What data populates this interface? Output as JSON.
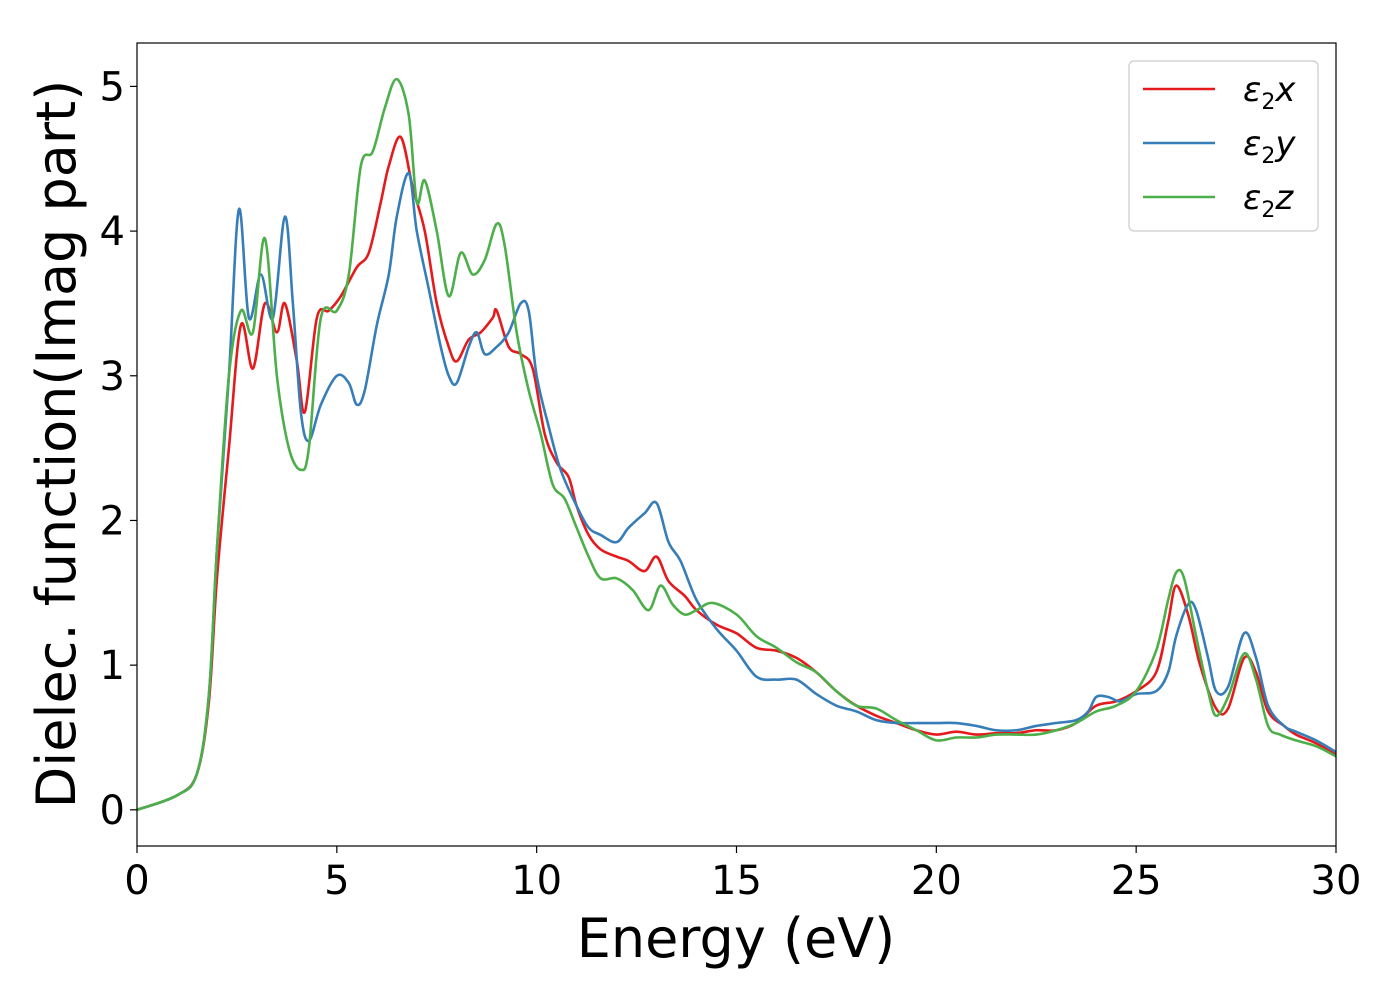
{
  "chart_data": {
    "type": "line",
    "title": "",
    "xlabel": "Energy (eV)",
    "ylabel": "Dielec. function(Imag part)",
    "xlim": [
      0,
      30
    ],
    "ylim": [
      -0.25,
      5.3
    ],
    "xticks": [
      0,
      5,
      10,
      15,
      20,
      25,
      30
    ],
    "yticks": [
      0,
      1,
      2,
      3,
      4,
      5
    ],
    "grid": false,
    "legend_position": "top-right",
    "series": [
      {
        "name": "ε₂x",
        "legend_base": "ε",
        "legend_sub": "2",
        "legend_suffix": "x",
        "color": "#e41a1c",
        "x": [
          0,
          1,
          1.5,
          1.8,
          2.0,
          2.3,
          2.6,
          2.9,
          3.2,
          3.5,
          3.7,
          4.0,
          4.2,
          4.5,
          4.8,
          5.1,
          5.5,
          5.8,
          6.1,
          6.3,
          6.6,
          6.9,
          7.2,
          7.5,
          7.8,
          8.0,
          8.3,
          8.6,
          8.9,
          9.0,
          9.3,
          9.6,
          9.9,
          10.2,
          10.5,
          10.8,
          11.0,
          11.3,
          11.6,
          12.0,
          12.3,
          12.7,
          13.0,
          13.3,
          13.7,
          14.0,
          14.5,
          15.0,
          15.5,
          16.0,
          16.5,
          17.0,
          17.5,
          18.0,
          18.5,
          19.0,
          19.5,
          20.0,
          20.5,
          21.0,
          21.5,
          22.0,
          22.5,
          23.0,
          23.5,
          24.0,
          24.5,
          25.0,
          25.5,
          25.8,
          26.0,
          26.3,
          26.6,
          27.0,
          27.3,
          27.7,
          28.0,
          28.3,
          28.7,
          29.0,
          29.5,
          30.0
        ],
        "values": [
          0,
          0.1,
          0.25,
          0.75,
          1.6,
          2.5,
          3.35,
          3.05,
          3.5,
          3.3,
          3.5,
          3.1,
          2.75,
          3.4,
          3.45,
          3.55,
          3.75,
          3.85,
          4.2,
          4.45,
          4.65,
          4.3,
          4.0,
          3.5,
          3.2,
          3.1,
          3.25,
          3.3,
          3.4,
          3.45,
          3.2,
          3.15,
          3.05,
          2.6,
          2.4,
          2.3,
          2.1,
          1.9,
          1.8,
          1.75,
          1.72,
          1.65,
          1.75,
          1.58,
          1.48,
          1.38,
          1.28,
          1.22,
          1.12,
          1.1,
          1.05,
          0.95,
          0.82,
          0.72,
          0.65,
          0.6,
          0.55,
          0.52,
          0.54,
          0.52,
          0.53,
          0.53,
          0.55,
          0.55,
          0.6,
          0.72,
          0.75,
          0.82,
          0.95,
          1.3,
          1.55,
          1.35,
          1.0,
          0.7,
          0.7,
          1.05,
          0.95,
          0.68,
          0.58,
          0.52,
          0.46,
          0.38
        ]
      },
      {
        "name": "ε₂y",
        "legend_base": "ε",
        "legend_sub": "2",
        "legend_suffix": "y",
        "color": "#377eb8",
        "x": [
          0,
          1,
          1.5,
          1.8,
          2.0,
          2.3,
          2.55,
          2.8,
          3.1,
          3.4,
          3.7,
          3.9,
          4.1,
          4.3,
          4.6,
          5.0,
          5.3,
          5.5,
          5.7,
          6.0,
          6.3,
          6.5,
          6.8,
          7.0,
          7.3,
          7.6,
          7.8,
          8.0,
          8.3,
          8.5,
          8.7,
          9.0,
          9.3,
          9.6,
          9.8,
          10.0,
          10.3,
          10.6,
          11.0,
          11.3,
          11.6,
          12.0,
          12.3,
          12.7,
          13.0,
          13.3,
          13.6,
          14.0,
          14.5,
          15.0,
          15.5,
          16.0,
          16.5,
          17.0,
          17.5,
          18.0,
          18.5,
          19.0,
          19.5,
          20.0,
          20.5,
          21.0,
          21.5,
          22.0,
          22.5,
          23.0,
          23.5,
          23.8,
          24.0,
          24.3,
          24.6,
          25.0,
          25.5,
          25.8,
          26.0,
          26.3,
          26.5,
          26.8,
          27.0,
          27.3,
          27.7,
          28.0,
          28.3,
          28.7,
          29.0,
          29.5,
          30.0
        ],
        "values": [
          0,
          0.1,
          0.25,
          0.8,
          1.8,
          3.0,
          4.15,
          3.4,
          3.7,
          3.4,
          4.1,
          3.5,
          2.75,
          2.55,
          2.8,
          3.0,
          2.95,
          2.8,
          2.9,
          3.35,
          3.7,
          4.1,
          4.4,
          4.0,
          3.6,
          3.2,
          3.0,
          2.95,
          3.2,
          3.3,
          3.15,
          3.2,
          3.3,
          3.5,
          3.45,
          3.0,
          2.65,
          2.35,
          2.1,
          1.95,
          1.9,
          1.85,
          1.95,
          2.05,
          2.12,
          1.85,
          1.72,
          1.45,
          1.25,
          1.1,
          0.92,
          0.9,
          0.9,
          0.8,
          0.72,
          0.68,
          0.62,
          0.6,
          0.6,
          0.6,
          0.6,
          0.58,
          0.55,
          0.55,
          0.58,
          0.6,
          0.62,
          0.68,
          0.78,
          0.78,
          0.75,
          0.8,
          0.82,
          0.95,
          1.2,
          1.42,
          1.38,
          1.05,
          0.82,
          0.85,
          1.22,
          1.05,
          0.72,
          0.58,
          0.54,
          0.48,
          0.4
        ]
      },
      {
        "name": "ε₂z",
        "legend_base": "ε",
        "legend_sub": "2",
        "legend_suffix": "z",
        "color": "#4daf4a",
        "x": [
          0,
          1,
          1.5,
          1.8,
          2.0,
          2.3,
          2.6,
          2.9,
          3.2,
          3.5,
          3.8,
          4.1,
          4.3,
          4.6,
          5.0,
          5.3,
          5.6,
          5.9,
          6.2,
          6.5,
          6.8,
          7.0,
          7.2,
          7.5,
          7.8,
          8.1,
          8.4,
          8.7,
          9.0,
          9.2,
          9.5,
          9.8,
          10.1,
          10.4,
          10.7,
          11.0,
          11.3,
          11.6,
          12.0,
          12.4,
          12.8,
          13.1,
          13.4,
          13.7,
          14.0,
          14.4,
          15.0,
          15.5,
          16.0,
          16.5,
          17.0,
          17.5,
          18.0,
          18.5,
          19.0,
          19.5,
          20.0,
          20.5,
          21.0,
          21.5,
          22.0,
          22.5,
          23.0,
          23.5,
          24.0,
          24.5,
          25.0,
          25.5,
          25.8,
          26.0,
          26.2,
          26.5,
          26.8,
          27.0,
          27.3,
          27.7,
          28.0,
          28.3,
          28.6,
          29.0,
          29.5,
          30.0
        ],
        "values": [
          0,
          0.1,
          0.25,
          0.8,
          1.8,
          3.0,
          3.45,
          3.3,
          3.95,
          3.0,
          2.5,
          2.35,
          2.5,
          3.4,
          3.45,
          3.7,
          4.45,
          4.55,
          4.85,
          5.05,
          4.8,
          4.2,
          4.35,
          4.0,
          3.55,
          3.85,
          3.7,
          3.8,
          4.05,
          3.9,
          3.3,
          2.9,
          2.6,
          2.25,
          2.15,
          1.95,
          1.75,
          1.6,
          1.6,
          1.52,
          1.38,
          1.55,
          1.42,
          1.35,
          1.38,
          1.43,
          1.35,
          1.2,
          1.12,
          1.02,
          0.95,
          0.82,
          0.72,
          0.7,
          0.62,
          0.55,
          0.48,
          0.5,
          0.5,
          0.52,
          0.52,
          0.52,
          0.55,
          0.6,
          0.68,
          0.72,
          0.82,
          1.1,
          1.45,
          1.64,
          1.6,
          1.2,
          0.82,
          0.65,
          0.78,
          1.08,
          0.9,
          0.58,
          0.52,
          0.48,
          0.44,
          0.37
        ]
      }
    ]
  }
}
